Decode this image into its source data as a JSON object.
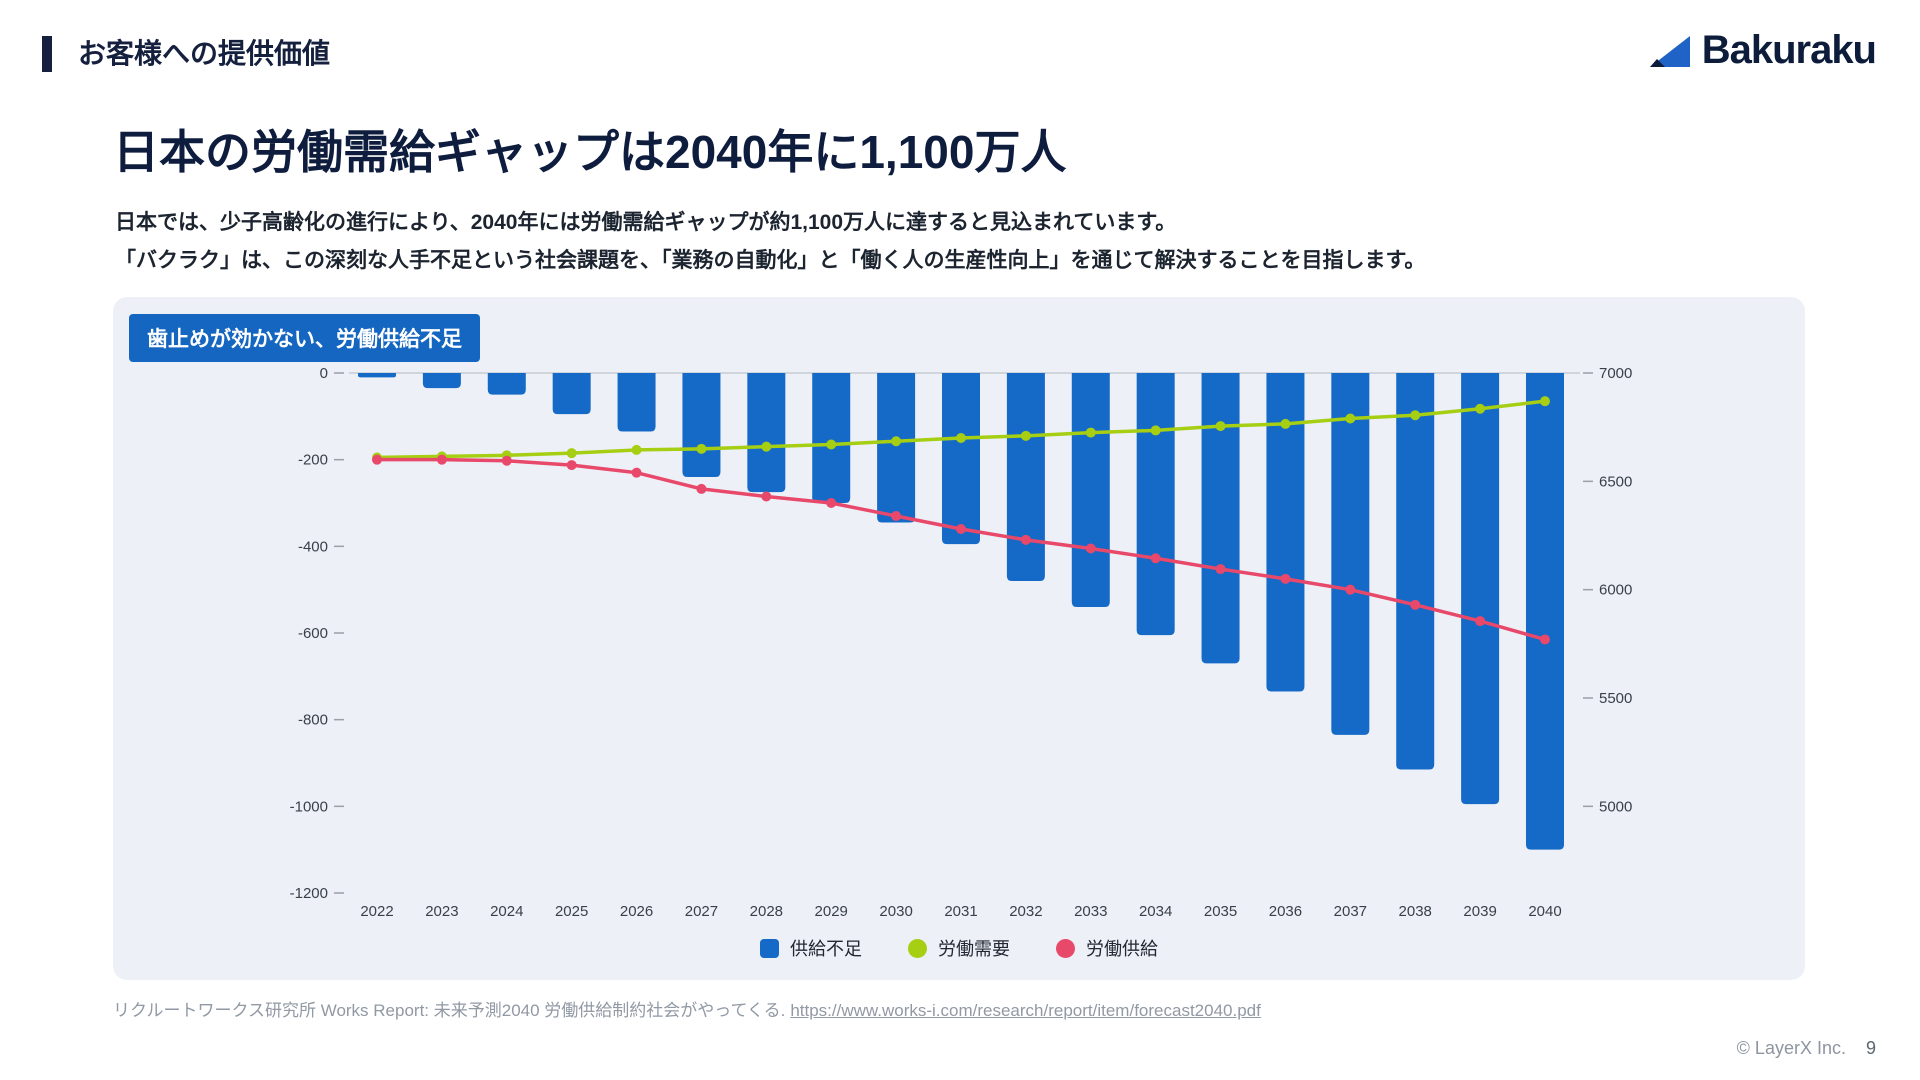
{
  "header": {
    "section_title": "お客様への提供価値",
    "logo_text": "Bakuraku"
  },
  "main": {
    "title": "日本の労働需給ギャップは2040年に1,100万人",
    "body_line1": "日本では、少子高齢化の進行により、2040年には労働需給ギャップが約1,100万人に達すると見込まれています。",
    "body_line2": "「バクラク」は、この深刻な人手不足という社会課題を、「業務の自動化」と「働く人の生産性向上」を通じて解決することを目指します。",
    "chart_badge": "歯止めが効かない、労働供給不足"
  },
  "chart_data": {
    "type": "bar",
    "title": "歯止めが効かない、労働供給不足",
    "categories": [
      "2022",
      "2023",
      "2024",
      "2025",
      "2026",
      "2027",
      "2028",
      "2029",
      "2030",
      "2031",
      "2032",
      "2033",
      "2034",
      "2035",
      "2036",
      "2037",
      "2038",
      "2039",
      "2040"
    ],
    "series": [
      {
        "name": "供給不足",
        "type": "bar",
        "axis": "left",
        "color": "#1569c7",
        "values": [
          -10,
          -35,
          -50,
          -95,
          -135,
          -240,
          -275,
          -300,
          -345,
          -395,
          -480,
          -540,
          -605,
          -670,
          -735,
          -835,
          -915,
          -995,
          -1100
        ]
      },
      {
        "name": "労働需要",
        "type": "line",
        "axis": "right",
        "color": "#a6ce13",
        "values": [
          6610,
          6615,
          6620,
          6630,
          6645,
          6650,
          6660,
          6670,
          6685,
          6700,
          6710,
          6725,
          6735,
          6755,
          6765,
          6790,
          6805,
          6835,
          6870
        ]
      },
      {
        "name": "労働供給",
        "type": "line",
        "axis": "right",
        "color": "#e8496b",
        "values": [
          6600,
          6600,
          6595,
          6575,
          6540,
          6465,
          6430,
          6400,
          6340,
          6280,
          6230,
          6190,
          6145,
          6095,
          6050,
          6000,
          5930,
          5855,
          5770
        ]
      }
    ],
    "left_axis": {
      "max": 0,
      "min": -1200,
      "ticks": [
        0,
        -200,
        -400,
        -600,
        -800,
        -1000,
        -1200
      ]
    },
    "right_axis": {
      "max": 7000,
      "min": 4600,
      "ticks": [
        7000,
        6500,
        6000,
        5500,
        5000
      ]
    },
    "grid": "zero-line only",
    "legend_position": "bottom-center"
  },
  "legend": {
    "items": [
      {
        "label": "供給不足",
        "shape": "square",
        "color": "#1569c7"
      },
      {
        "label": "労働需要",
        "shape": "circle",
        "color": "#a6ce13"
      },
      {
        "label": "労働供給",
        "shape": "circle",
        "color": "#e8496b"
      }
    ]
  },
  "footer": {
    "source_text": "リクルートワークス研究所 Works Report: 未来予測2040 労働供給制約社会がやってくる.",
    "source_link": "https://www.works-i.com/research/report/item/forecast2040.pdf"
  },
  "page": {
    "copyright": "© LayerX Inc.",
    "page_number": "9"
  },
  "theme": {
    "accent_navy": "#15203f",
    "badge_blue": "#1566c0",
    "card_bg": "#edf1f7",
    "bar_blue": "#1569c7",
    "demand_green": "#a6ce13",
    "supply_red": "#e8496b",
    "axis_text": "#3a4049"
  }
}
